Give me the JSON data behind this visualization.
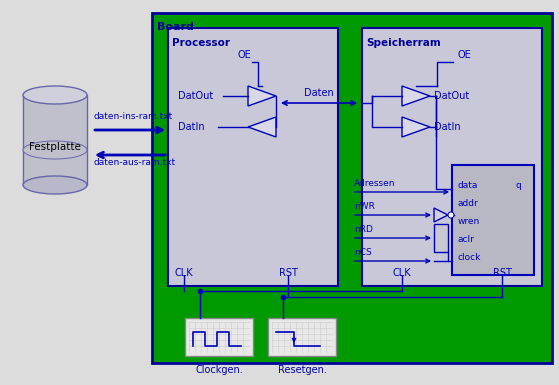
{
  "bg_color": "#dcdcdc",
  "board_bg": "#009900",
  "board_label": "Board",
  "processor_bg": "#c8c8d8",
  "processor_label": "Processor",
  "speicherram_bg": "#c8c8d8",
  "speicherram_label": "Speicherram",
  "blue": "#0000bb",
  "dark_blue": "#000099",
  "ram_ports": [
    "data",
    "addr",
    "wren",
    "aclr",
    "clock"
  ],
  "ram_port_q": "q",
  "festplatte_label": "Festplatte",
  "arrow1_label": "daten-ins-ram.txt",
  "arrow2_label": "daten-aus-ram.txt",
  "clockgen_label": "Clockgen.",
  "resetgen_label": "Resetgen."
}
